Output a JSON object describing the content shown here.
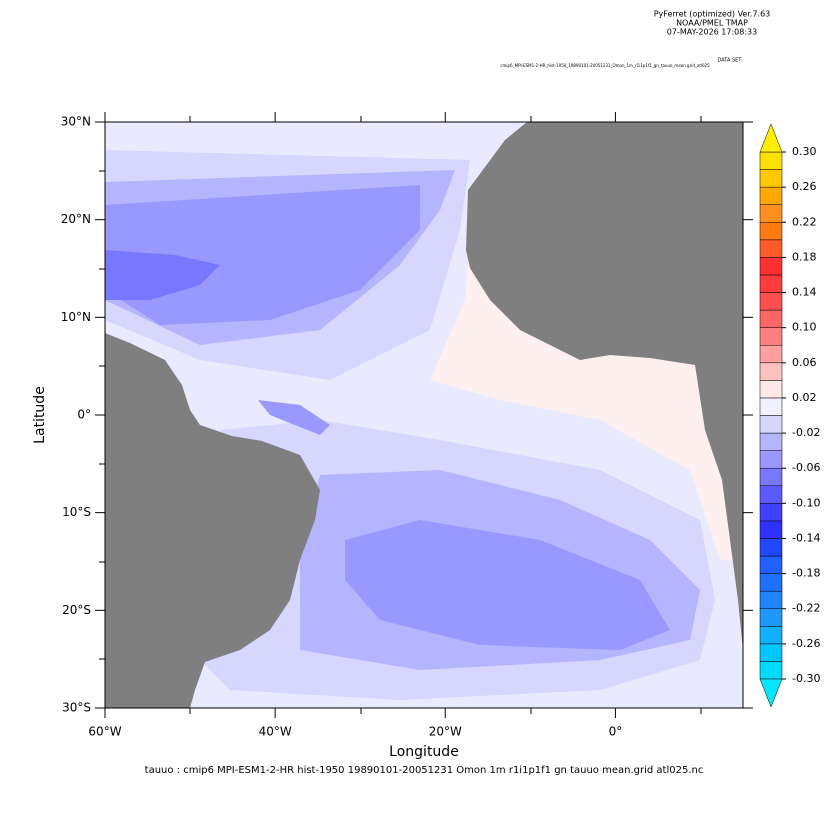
{
  "header": {
    "lines": [
      "PyFerret (optimized) Ver.7.63",
      "NOAA/PMEL TMAP",
      "07-MAY-2026 17:08:33"
    ],
    "dataset_label": "DATA SET:",
    "dataset": "cmip6_MPI-ESM1-2-HR_hist-1950_19890101-20051231_Omon_1m_r1i1p1f1_gn_tauuo_mean.grid_atl025"
  },
  "chart_data": {
    "type": "contour",
    "xlabel": "Longitude",
    "ylabel": "Latitude",
    "footnote": "tauuo : cmip6 MPI-ESM1-2-HR hist-1950 19890101-20051231 Omon 1m r1i1p1f1 gn tauuo mean.grid atl025.nc",
    "xlim": [
      -60,
      15
    ],
    "xticks": [
      {
        "value": -60,
        "label": "60°W"
      },
      {
        "value": -40,
        "label": "40°W"
      },
      {
        "value": -20,
        "label": "20°W"
      },
      {
        "value": 0,
        "label": "0°"
      }
    ],
    "ylim": [
      -30,
      30
    ],
    "yticks": [
      {
        "value": 30,
        "label": "30°N"
      },
      {
        "value": 20,
        "label": "20°N"
      },
      {
        "value": 10,
        "label": "10°N"
      },
      {
        "value": 0,
        "label": "0°"
      },
      {
        "value": -10,
        "label": "10°S"
      },
      {
        "value": -20,
        "label": "20°S"
      },
      {
        "value": -30,
        "label": "30°S"
      }
    ],
    "colorbar": {
      "levels": [
        -0.3,
        -0.28,
        -0.26,
        -0.24,
        -0.22,
        -0.2,
        -0.18,
        -0.16,
        -0.14,
        -0.12,
        -0.1,
        -0.08,
        -0.06,
        -0.04,
        -0.02,
        0,
        0.02,
        0.04,
        0.06,
        0.08,
        0.1,
        0.12,
        0.14,
        0.16,
        0.18,
        0.2,
        0.22,
        0.24,
        0.26,
        0.28,
        0.3
      ],
      "colors": [
        "#00dcff",
        "#00c8ff",
        "#10b0ff",
        "#1e98ff",
        "#1e84ff",
        "#1e70ff",
        "#2060ff",
        "#2048ff",
        "#3030ff",
        "#4040ff",
        "#5a5aff",
        "#7878ff",
        "#9898ff",
        "#b4b4ff",
        "#d6d6ff",
        "#f2f2ff",
        "#ffe8e8",
        "#ffc0c0",
        "#ffa0a0",
        "#ff8080",
        "#ff6666",
        "#ff5050",
        "#ff3c3c",
        "#ff3030",
        "#ff5a28",
        "#ff7a10",
        "#ff9020",
        "#ffa800",
        "#ffc800",
        "#ffe000"
      ],
      "under_color": "#00e8ff",
      "over_color": "#ffee00",
      "ticks": [
        {
          "value": 0.3,
          "label": "0.30"
        },
        {
          "value": 0.26,
          "label": "0.26"
        },
        {
          "value": 0.22,
          "label": "0.22"
        },
        {
          "value": 0.18,
          "label": "0.18"
        },
        {
          "value": 0.14,
          "label": "0.14"
        },
        {
          "value": 0.1,
          "label": "0.10"
        },
        {
          "value": 0.06,
          "label": "0.06"
        },
        {
          "value": 0.02,
          "label": "0.02"
        },
        {
          "value": -0.02,
          "label": "-0.02"
        },
        {
          "value": -0.06,
          "label": "-0.06"
        },
        {
          "value": -0.1,
          "label": "-0.10"
        },
        {
          "value": -0.14,
          "label": "-0.14"
        },
        {
          "value": -0.18,
          "label": "-0.18"
        },
        {
          "value": -0.22,
          "label": "-0.22"
        },
        {
          "value": -0.26,
          "label": "-0.26"
        },
        {
          "value": -0.3,
          "label": "-0.30"
        }
      ]
    }
  }
}
